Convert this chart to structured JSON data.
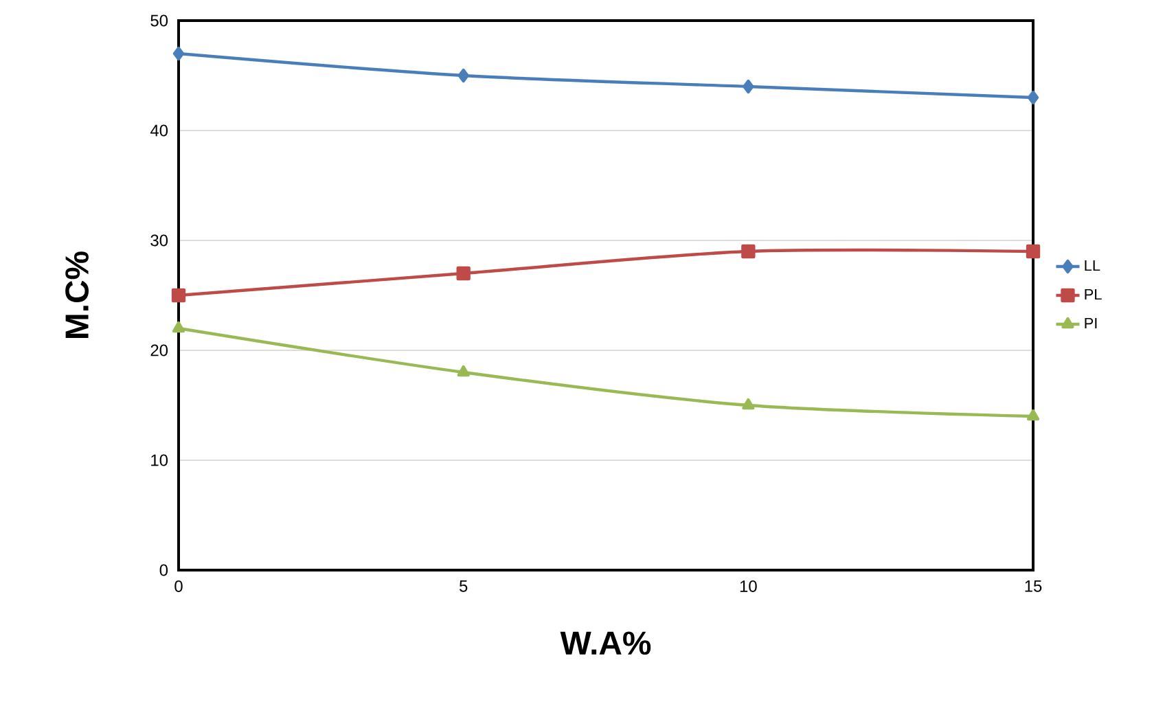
{
  "chart_data": {
    "type": "line",
    "xlabel": "W.A%",
    "ylabel": "M.C%",
    "x": [
      0,
      5,
      10,
      15
    ],
    "series": [
      {
        "name": "LL",
        "color": "#4a7ebb",
        "marker": "diamond",
        "values": [
          47,
          45,
          44,
          43
        ]
      },
      {
        "name": "PL",
        "color": "#be4b48",
        "marker": "square",
        "values": [
          25,
          27,
          29,
          29
        ]
      },
      {
        "name": "PI",
        "color": "#98b954",
        "marker": "triangle",
        "values": [
          22,
          18,
          15,
          14
        ]
      }
    ],
    "xlim": [
      0,
      15
    ],
    "ylim": [
      0,
      50
    ],
    "xticks": [
      0,
      5,
      10,
      15
    ],
    "yticks": [
      0,
      10,
      20,
      30,
      40,
      50
    ],
    "grid": "y",
    "legend": "right",
    "line_style": "solid"
  }
}
